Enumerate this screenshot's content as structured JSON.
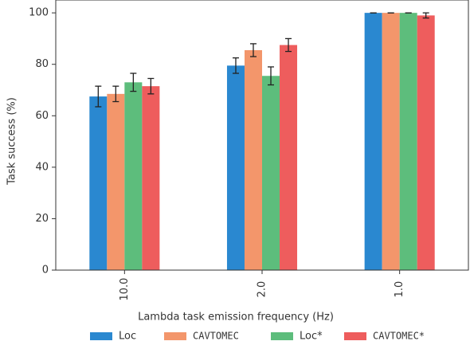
{
  "chart_data": {
    "type": "bar",
    "x_label": "Lambda task emission frequency (Hz)",
    "y_label": "Task success (%)",
    "categories": [
      "10.0",
      "2.0",
      "1.0"
    ],
    "series": [
      {
        "name": "Loc",
        "color": "#2a88d0",
        "values": [
          67.5,
          79.5,
          100
        ],
        "errors": [
          4,
          3,
          0
        ]
      },
      {
        "name": "CAVTOMEC",
        "color": "#f3966b",
        "values": [
          68.5,
          85.5,
          100
        ],
        "errors": [
          3,
          2.5,
          0
        ]
      },
      {
        "name": "Loc*",
        "color": "#5dbd7c",
        "values": [
          73,
          75.5,
          100
        ],
        "errors": [
          3.5,
          3.5,
          0
        ]
      },
      {
        "name": "CAVTOMEC*",
        "color": "#ee5d5d",
        "values": [
          71.5,
          87.5,
          99
        ],
        "errors": [
          3,
          2.5,
          1
        ]
      }
    ],
    "ylim": [
      0,
      105
    ],
    "yticks": [
      0,
      20,
      40,
      60,
      80,
      100
    ],
    "legend": "bottom"
  }
}
